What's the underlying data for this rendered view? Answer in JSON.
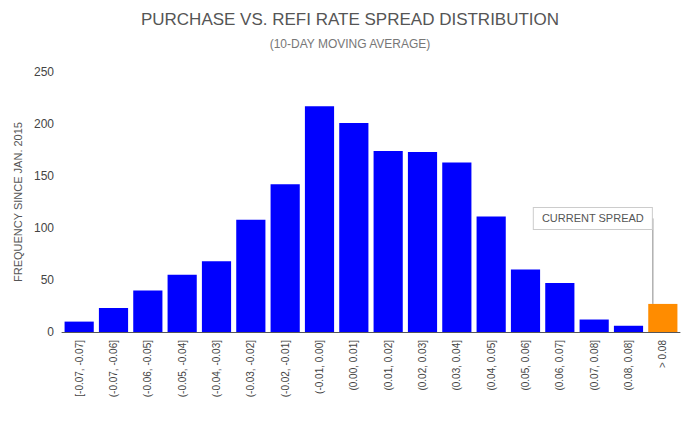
{
  "chart_data": {
    "type": "bar",
    "title": "PURCHASE VS. REFI RATE SPREAD DISTRIBUTION",
    "subtitle": "(10-DAY MOVING AVERAGE)",
    "ylabel": "FREQUENCY SINCE JAN. 2015",
    "categories": [
      "[-0.07, -0.07]",
      "(-0.07, -0.06]",
      "(-0.06, -0.05]",
      "(-0.05, -0.04]",
      "(-0.04, -0.03]",
      "(-0.03, -0.02]",
      "(-0.02, -0.01]",
      "(-0.01, 0.00]",
      "(0.00, 0.01]",
      "(0.01, 0.02]",
      "(0.02, 0.03]",
      "(0.03, 0.04]",
      "(0.04, 0.05]",
      "(0.05, 0.06]",
      "(0.06, 0.07]",
      "(0.07, 0.08]",
      "(0.08, 0.08]",
      "> 0.08"
    ],
    "values": [
      10,
      23,
      40,
      55,
      68,
      108,
      142,
      217,
      201,
      174,
      173,
      163,
      111,
      60,
      47,
      12,
      6,
      27
    ],
    "colors": [
      "#0000ff",
      "#0000ff",
      "#0000ff",
      "#0000ff",
      "#0000ff",
      "#0000ff",
      "#0000ff",
      "#0000ff",
      "#0000ff",
      "#0000ff",
      "#0000ff",
      "#0000ff",
      "#0000ff",
      "#0000ff",
      "#0000ff",
      "#0000ff",
      "#0000ff",
      "#ff8c00"
    ],
    "ylim": [
      0,
      250
    ],
    "yticks": [
      0,
      50,
      100,
      150,
      200,
      250
    ],
    "annotation": "CURRENT SPREAD",
    "grid": false
  }
}
